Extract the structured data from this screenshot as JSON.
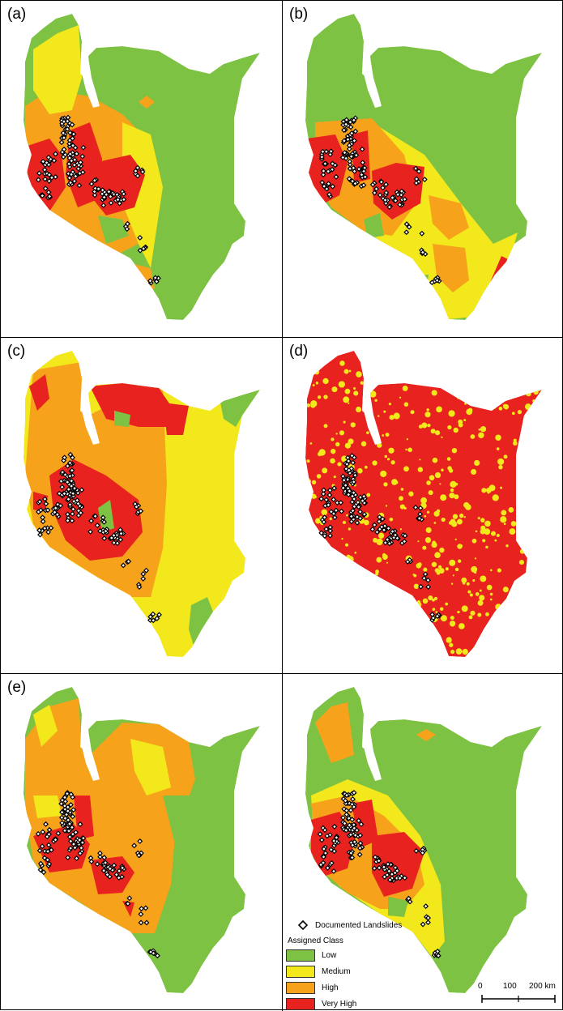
{
  "panels": [
    {
      "label": "(a)",
      "scheme": "a"
    },
    {
      "label": "(b)",
      "scheme": "b"
    },
    {
      "label": "(c)",
      "scheme": "c"
    },
    {
      "label": "(d)",
      "scheme": "d"
    },
    {
      "label": "(e)",
      "scheme": "e"
    },
    {
      "label": "",
      "scheme": "f"
    }
  ],
  "legend": {
    "marker_label": "Documented Landslides",
    "title": "Assigned Class",
    "classes": [
      {
        "name": "Low",
        "color": "#7dc243"
      },
      {
        "name": "Medium",
        "color": "#f2e81c"
      },
      {
        "name": "High",
        "color": "#f7a21b"
      },
      {
        "name": "Very High",
        "color": "#e8231f"
      }
    ]
  },
  "scale": {
    "ticks": [
      "0",
      "100",
      "200 km"
    ]
  }
}
